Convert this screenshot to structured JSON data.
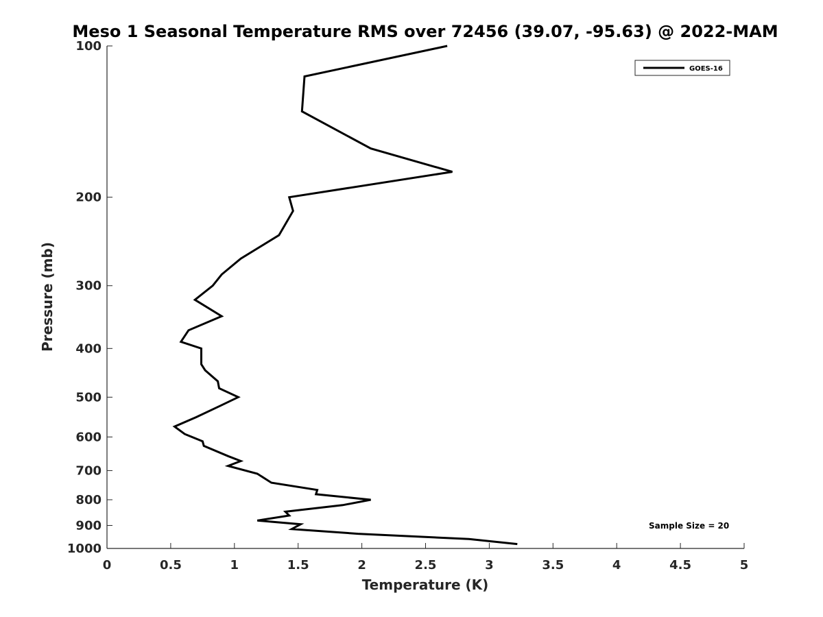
{
  "chart_data": {
    "type": "line",
    "title": "Meso 1 Seasonal Temperature RMS over 72456 (39.07, -95.63) @ 2022-MAM",
    "xlabel": "Temperature (K)",
    "ylabel": "Pressure (mb)",
    "xlim": [
      0,
      5
    ],
    "ylim": [
      100,
      1000
    ],
    "y_scale": "log",
    "y_reversed": true,
    "x_ticks": [
      0,
      0.5,
      1,
      1.5,
      2,
      2.5,
      3,
      3.5,
      4,
      4.5,
      5
    ],
    "x_tick_labels": [
      "0",
      "0.5",
      "1",
      "1.5",
      "2",
      "2.5",
      "3",
      "3.5",
      "4",
      "4.5",
      "5"
    ],
    "y_ticks": [
      100,
      200,
      300,
      400,
      500,
      600,
      700,
      800,
      900,
      1000
    ],
    "y_tick_labels": [
      "100",
      "200",
      "300",
      "400",
      "500",
      "600",
      "700",
      "800",
      "900",
      "1000"
    ],
    "grid": false,
    "legend_position": "top-right",
    "annotation": "Sample Size = 20",
    "series": [
      {
        "name": "GOES-16",
        "color": "#000000",
        "x": [
          2.67,
          1.55,
          1.53,
          2.07,
          2.71,
          1.43,
          1.46,
          1.35,
          1.05,
          0.9,
          0.83,
          0.69,
          0.9,
          0.64,
          0.58,
          0.74,
          0.74,
          0.77,
          0.87,
          0.88,
          1.03,
          0.89,
          0.7,
          0.53,
          0.61,
          0.75,
          0.76,
          0.95,
          1.05,
          0.95,
          1.18,
          1.29,
          1.65,
          1.64,
          2.07,
          1.85,
          1.4,
          1.43,
          1.18,
          1.52,
          1.45,
          1.97,
          2.84,
          3.22
        ],
        "y": [
          100,
          115,
          135,
          160,
          178,
          200,
          213,
          238,
          265,
          285,
          300,
          320,
          345,
          368,
          388,
          400,
          430,
          442,
          465,
          480,
          500,
          520,
          548,
          572,
          592,
          612,
          625,
          655,
          670,
          685,
          710,
          740,
          765,
          780,
          800,
          820,
          845,
          860,
          880,
          895,
          915,
          935,
          958,
          980
        ]
      }
    ]
  }
}
